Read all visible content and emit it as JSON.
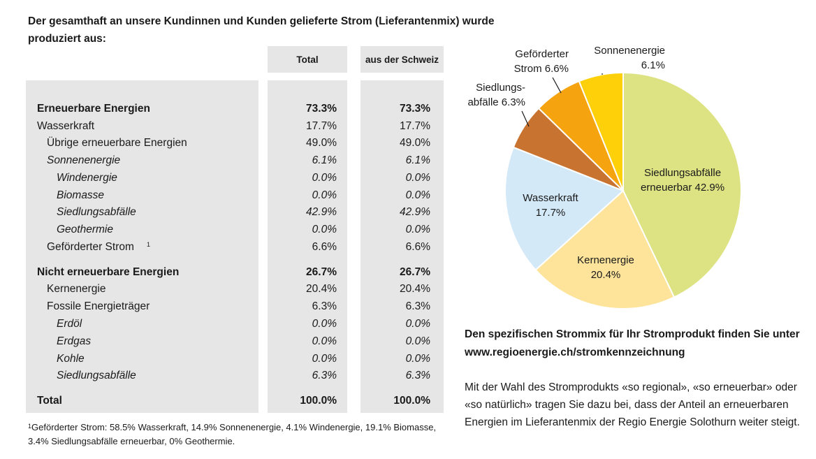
{
  "heading": "Der gesamthaft an unsere Kundinnen und Kunden gelieferte Strom (Lieferantenmix) wurde produziert aus:",
  "table": {
    "col_total": "Total",
    "col_swiss": "aus der Schweiz",
    "rows": [
      {
        "label": "Erneuerbare Energien",
        "total": "73.3%",
        "swiss": "73.3%",
        "style": "bold",
        "indent": 0
      },
      {
        "label": "Wasserkraft",
        "total": "17.7%",
        "swiss": "17.7%",
        "style": "normal",
        "indent": 0
      },
      {
        "label": "Übrige erneuerbare Energien",
        "total": "49.0%",
        "swiss": "49.0%",
        "style": "normal",
        "indent": 1
      },
      {
        "label": "Sonnenenergie",
        "total": "6.1%",
        "swiss": "6.1%",
        "style": "italic",
        "indent": 1
      },
      {
        "label": "Windenergie",
        "total": "0.0%",
        "swiss": "0.0%",
        "style": "italic",
        "indent": 2
      },
      {
        "label": "Biomasse",
        "total": "0.0%",
        "swiss": "0.0%",
        "style": "italic",
        "indent": 2
      },
      {
        "label": "Siedlungsabfälle",
        "total": "42.9%",
        "swiss": "42.9%",
        "style": "italic",
        "indent": 2
      },
      {
        "label": "Geothermie",
        "total": "0.0%",
        "swiss": "0.0%",
        "style": "italic",
        "indent": 2
      },
      {
        "label": "Geförderter Strom",
        "sup": "1",
        "total": "6.6%",
        "swiss": "6.6%",
        "style": "normal",
        "indent": 1
      },
      {
        "label": "Nicht erneuerbare Energien",
        "total": "26.7%",
        "swiss": "26.7%",
        "style": "bold",
        "indent": 0
      },
      {
        "label": "Kernenergie",
        "total": "20.4%",
        "swiss": "20.4%",
        "style": "normal",
        "indent": 1
      },
      {
        "label": "Fossile Energieträger",
        "total": "6.3%",
        "swiss": "6.3%",
        "style": "normal",
        "indent": 1
      },
      {
        "label": "Erdöl",
        "total": "0.0%",
        "swiss": "0.0%",
        "style": "italic",
        "indent": 2
      },
      {
        "label": "Erdgas",
        "total": "0.0%",
        "swiss": "0.0%",
        "style": "italic",
        "indent": 2
      },
      {
        "label": "Kohle",
        "total": "0.0%",
        "swiss": "0.0%",
        "style": "italic",
        "indent": 2
      },
      {
        "label": "Siedlungsabfälle",
        "total": "6.3%",
        "swiss": "6.3%",
        "style": "italic",
        "indent": 2
      },
      {
        "label": "Total",
        "total": "100.0%",
        "swiss": "100.0%",
        "style": "bold",
        "indent": 0
      }
    ]
  },
  "footnote": {
    "mark": "1",
    "text": "Geförderter Strom: 58.5% Wasserkraft, 14.9% Sonnenenergie, 4.1% Windenergie, 19.1% Biomasse, 3.4% Siedlungsabfälle erneuerbar, 0% Geothermie."
  },
  "info_bold": "Den spezifischen Strommix für Ihr Stromprodukt finden Sie unter www.regioenergie.ch/stromkennzeichnung",
  "info_text": "Mit der Wahl des Stromprodukts «so regional», «so erneuerbar» oder «so natürlich» tragen Sie dazu bei, dass der Anteil an erneuerbaren Energien im Lieferantenmix der Regio Energie Solothurn weiter steigt.",
  "chart_data": {
    "type": "pie",
    "slices": [
      {
        "label_lines": [
          "Siedlungsabfälle",
          "erneuerbar 42.9%"
        ],
        "value": 42.9,
        "color": "#dde383"
      },
      {
        "label_lines": [
          "Kernenergie",
          "20.4%"
        ],
        "value": 20.4,
        "color": "#fde49a"
      },
      {
        "label_lines": [
          "Wasserkraft",
          "17.7%"
        ],
        "value": 17.7,
        "color": "#d3e9f8"
      },
      {
        "label_lines": [
          "Siedlungs-",
          "abfälle 6.3%"
        ],
        "value": 6.3,
        "color": "#c8732f"
      },
      {
        "label_lines": [
          "Geförderter",
          "Strom 6.6%"
        ],
        "value": 6.6,
        "color": "#f5a30f"
      },
      {
        "label_lines": [
          "Sonnenenergie",
          "6.1%"
        ],
        "value": 6.1,
        "color": "#fdd00a"
      }
    ]
  }
}
